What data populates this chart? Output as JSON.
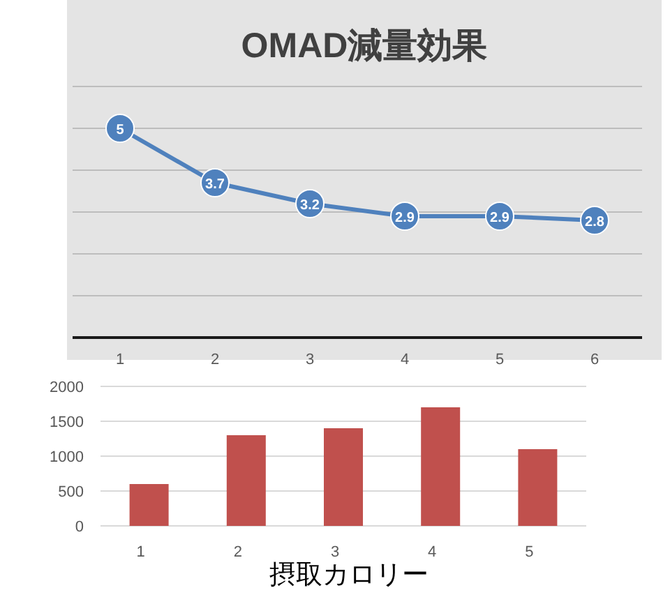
{
  "chart_data": [
    {
      "type": "line",
      "title": "OMAD減量効果",
      "categories": [
        "1",
        "2",
        "3",
        "4",
        "5",
        "6"
      ],
      "series": [
        {
          "color": "#4f81bd",
          "values": [
            5,
            3.7,
            3.2,
            2.9,
            2.9,
            2.8
          ]
        }
      ],
      "data_labels": true,
      "marker": "circle",
      "line_style": "solid",
      "grid": "y",
      "tick_labels": "x",
      "ylim": [
        0,
        6
      ],
      "yticks": [
        {
          "value": 0,
          "label": null
        },
        {
          "value": 1,
          "label": null
        },
        {
          "value": 2,
          "label": null
        },
        {
          "value": 3,
          "label": null
        },
        {
          "value": 4,
          "label": null
        },
        {
          "value": 5,
          "label": null
        },
        {
          "value": 6,
          "label": null
        }
      ]
    },
    {
      "type": "bar",
      "xlabel": "摂取カロリー",
      "categories": [
        "1",
        "2",
        "3",
        "4",
        "5"
      ],
      "series": [
        {
          "color": "#c0504d",
          "values": [
            600,
            1300,
            1400,
            1700,
            1100
          ]
        }
      ],
      "grid": "y",
      "ylim": [
        0,
        2000
      ],
      "yticks": [
        0,
        500,
        1000,
        1500,
        2000
      ]
    }
  ]
}
